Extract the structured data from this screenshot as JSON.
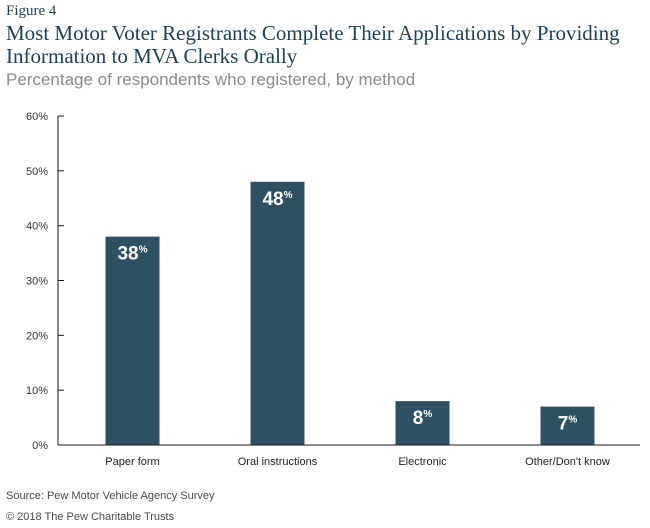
{
  "figure_label": "Figure 4",
  "title": "Most Motor Voter Registrants Complete Their Applications by Providing Information to MVA Clerks Orally",
  "subtitle": "Percentage of respondents who registered, by method",
  "source": "Source: Pew Motor Vehicle Agency Survey",
  "copyright": "© 2018 The Pew Charitable Trusts",
  "colors": {
    "bar": "#2f4f63",
    "axis": "#1a1a1a",
    "label_text": "#ffffff"
  },
  "chart_data": {
    "type": "bar",
    "title": "",
    "xlabel": "",
    "ylabel": "",
    "categories": [
      "Paper form",
      "Oral instructions",
      "Electronic",
      "Other/Don't know"
    ],
    "values": [
      38,
      48,
      8,
      7
    ],
    "data_labels": [
      "38",
      "48",
      "8",
      "7"
    ],
    "value_suffix": "%",
    "ylim": [
      0,
      60
    ],
    "yticks": [
      0,
      10,
      20,
      30,
      40,
      50,
      60
    ],
    "ytick_labels": [
      "0%",
      "10%",
      "20%",
      "30%",
      "40%",
      "50%",
      "60%"
    ],
    "grid": false
  }
}
